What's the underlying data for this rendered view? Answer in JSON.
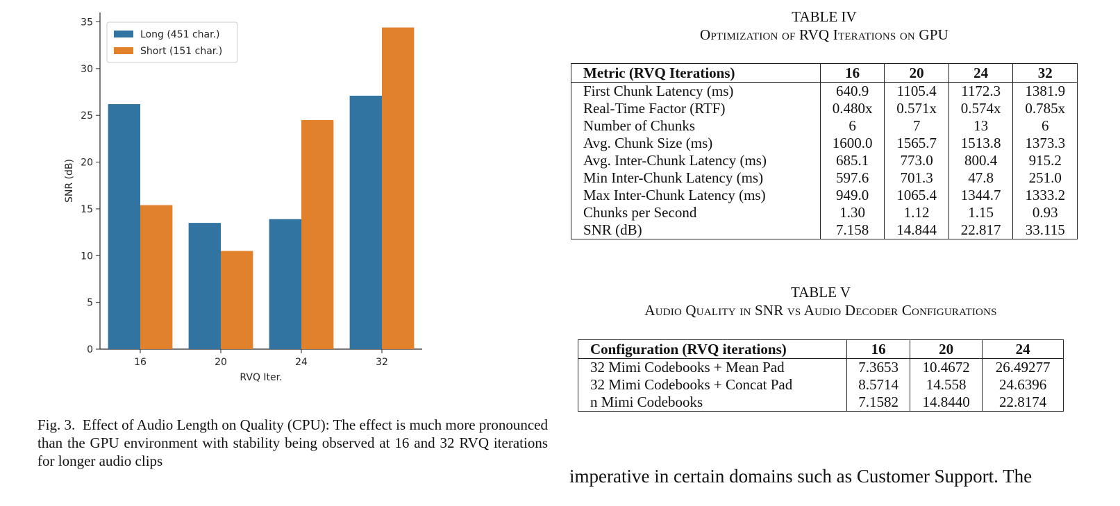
{
  "chart_data": {
    "type": "bar",
    "categories": [
      "16",
      "20",
      "24",
      "32"
    ],
    "series": [
      {
        "name": "Long (451 char.)",
        "values": [
          26.2,
          13.5,
          13.9,
          27.1
        ],
        "color": "#3274a1"
      },
      {
        "name": "Short (151 char.)",
        "values": [
          15.4,
          10.5,
          24.5,
          34.4
        ],
        "color": "#e1812c"
      }
    ],
    "xlabel": "RVQ Iter.",
    "ylabel": "SNR (dB)",
    "ylim": [
      0,
      36
    ],
    "yticks": [
      0,
      5,
      10,
      15,
      20,
      25,
      30,
      35
    ],
    "legend": "top-left",
    "grid": false
  },
  "figure_caption": {
    "label": "Fig. 3.",
    "text": "Effect of Audio Length on Quality (CPU): The effect is much more pronounced than the GPU environment with stability being observed at 16 and 32 RVQ iterations for longer audio clips"
  },
  "table4": {
    "number": "TABLE IV",
    "title": "Optimization of RVQ Iterations on GPU",
    "headers": [
      "Metric (RVQ Iterations)",
      "16",
      "20",
      "24",
      "32"
    ],
    "rows": [
      [
        "First Chunk Latency (ms)",
        "640.9",
        "1105.4",
        "1172.3",
        "1381.9"
      ],
      [
        "Real-Time Factor (RTF)",
        "0.480x",
        "0.571x",
        "0.574x",
        "0.785x"
      ],
      [
        "Number of Chunks",
        "6",
        "7",
        "13",
        "6"
      ],
      [
        "Avg. Chunk Size (ms)",
        "1600.0",
        "1565.7",
        "1513.8",
        "1373.3"
      ],
      [
        "Avg. Inter-Chunk Latency (ms)",
        "685.1",
        "773.0",
        "800.4",
        "915.2"
      ],
      [
        "Min Inter-Chunk Latency (ms)",
        "597.6",
        "701.3",
        "47.8",
        "251.0"
      ],
      [
        "Max Inter-Chunk Latency (ms)",
        "949.0",
        "1065.4",
        "1344.7",
        "1333.2"
      ],
      [
        "Chunks per Second",
        "1.30",
        "1.12",
        "1.15",
        "0.93"
      ],
      [
        "SNR (dB)",
        "7.158",
        "14.844",
        "22.817",
        "33.115"
      ]
    ]
  },
  "table5": {
    "number": "TABLE V",
    "title": "Audio Quality in SNR vs Audio Decoder Configurations",
    "headers": [
      "Configuration (RVQ iterations)",
      "16",
      "20",
      "24"
    ],
    "rows": [
      [
        "32 Mimi Codebooks + Mean Pad",
        "7.3653",
        "10.4672",
        "26.49277"
      ],
      [
        "32 Mimi Codebooks + Concat Pad",
        "8.5714",
        "14.558",
        "24.6396"
      ],
      [
        "n Mimi Codebooks",
        "7.1582",
        "14.8440",
        "22.8174"
      ]
    ]
  },
  "body_text": "imperative in certain domains such as Customer Support. The"
}
